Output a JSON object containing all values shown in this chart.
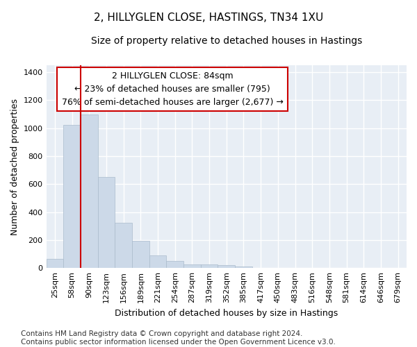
{
  "title_line1": "2, HILLYGLEN CLOSE, HASTINGS, TN34 1XU",
  "title_line2": "Size of property relative to detached houses in Hastings",
  "xlabel": "Distribution of detached houses by size in Hastings",
  "ylabel": "Number of detached properties",
  "categories": [
    "25sqm",
    "58sqm",
    "90sqm",
    "123sqm",
    "156sqm",
    "189sqm",
    "221sqm",
    "254sqm",
    "287sqm",
    "319sqm",
    "352sqm",
    "385sqm",
    "417sqm",
    "450sqm",
    "483sqm",
    "516sqm",
    "548sqm",
    "581sqm",
    "614sqm",
    "646sqm",
    "679sqm"
  ],
  "values": [
    65,
    1025,
    1100,
    650,
    325,
    195,
    90,
    50,
    25,
    25,
    20,
    12,
    0,
    0,
    0,
    0,
    0,
    0,
    0,
    0,
    0
  ],
  "bar_color": "#ccd9e8",
  "bar_edge_color": "#aabbcc",
  "background_color": "#e8eef5",
  "grid_color": "#ffffff",
  "annotation_text": "2 HILLYGLEN CLOSE: 84sqm\n← 23% of detached houses are smaller (795)\n76% of semi-detached houses are larger (2,677) →",
  "annotation_box_color": "#ffffff",
  "annotation_border_color": "#cc0000",
  "vline_color": "#cc0000",
  "vline_x_index": 2,
  "ylim": [
    0,
    1450
  ],
  "yticks": [
    0,
    200,
    400,
    600,
    800,
    1000,
    1200,
    1400
  ],
  "footnote": "Contains HM Land Registry data © Crown copyright and database right 2024.\nContains public sector information licensed under the Open Government Licence v3.0.",
  "title_fontsize": 11,
  "subtitle_fontsize": 10,
  "xlabel_fontsize": 9,
  "ylabel_fontsize": 9,
  "tick_fontsize": 8,
  "annotation_fontsize": 9,
  "footnote_fontsize": 7.5
}
